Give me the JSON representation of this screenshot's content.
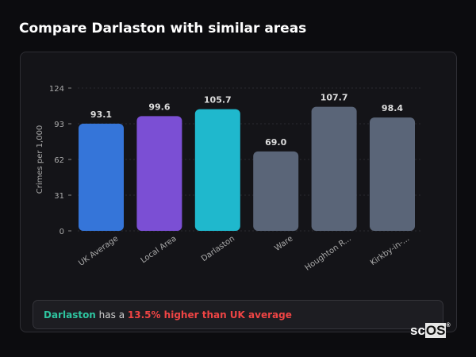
{
  "title": "Compare Darlaston with similar areas",
  "chart_data": {
    "type": "bar",
    "title": "",
    "ylabel": "Crimes per 1,000",
    "xlabel": "",
    "ylim": [
      0,
      124
    ],
    "yticks": [
      0,
      31,
      62,
      93,
      124
    ],
    "grid": true,
    "categories": [
      "UK Average",
      "Local Area",
      "Darlaston",
      "Ware",
      "Houghton R...",
      "Kirkby-in-..."
    ],
    "values": [
      93.1,
      99.6,
      105.7,
      69.0,
      107.7,
      98.4
    ],
    "value_labels": [
      "93.1",
      "99.6",
      "105.7",
      "69.0",
      "107.7",
      "98.4"
    ],
    "colors": [
      "#3575d9",
      "#7b4fd4",
      "#1fb8cd",
      "#5a6578",
      "#5a6578",
      "#5a6578"
    ]
  },
  "insight": {
    "area": "Darlaston",
    "middle": " has a ",
    "highlight": "13.5% higher than UK average",
    "area_color": "#2ec4a0",
    "highlight_color": "#ef4444"
  },
  "logo": {
    "text_a": "sc",
    "text_b": "OS",
    "mark": "®"
  }
}
